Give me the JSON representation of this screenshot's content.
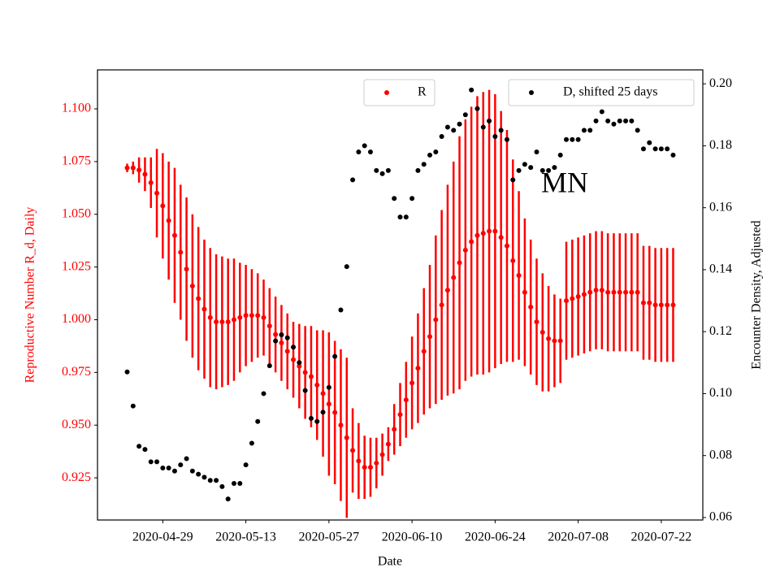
{
  "chart_data": {
    "type": "scatter",
    "xlabel": "Date",
    "ylabel": "Reproductive Number R_d, Daily",
    "y2label": "Encounter Density, Adjusted",
    "annotation": "MN",
    "x": [
      "2020-04-23",
      "2020-04-24",
      "2020-04-25",
      "2020-04-26",
      "2020-04-27",
      "2020-04-28",
      "2020-04-29",
      "2020-04-30",
      "2020-05-01",
      "2020-05-02",
      "2020-05-03",
      "2020-05-04",
      "2020-05-05",
      "2020-05-06",
      "2020-05-07",
      "2020-05-08",
      "2020-05-09",
      "2020-05-10",
      "2020-05-11",
      "2020-05-12",
      "2020-05-13",
      "2020-05-14",
      "2020-05-15",
      "2020-05-16",
      "2020-05-17",
      "2020-05-18",
      "2020-05-19",
      "2020-05-20",
      "2020-05-21",
      "2020-05-22",
      "2020-05-23",
      "2020-05-24",
      "2020-05-25",
      "2020-05-26",
      "2020-05-27",
      "2020-05-28",
      "2020-05-29",
      "2020-05-30",
      "2020-05-31",
      "2020-06-01",
      "2020-06-02",
      "2020-06-03",
      "2020-06-04",
      "2020-06-05",
      "2020-06-06",
      "2020-06-07",
      "2020-06-08",
      "2020-06-09",
      "2020-06-10",
      "2020-06-11",
      "2020-06-12",
      "2020-06-13",
      "2020-06-14",
      "2020-06-15",
      "2020-06-16",
      "2020-06-17",
      "2020-06-18",
      "2020-06-19",
      "2020-06-20",
      "2020-06-21",
      "2020-06-22",
      "2020-06-23",
      "2020-06-24",
      "2020-06-25",
      "2020-06-26",
      "2020-06-27",
      "2020-06-28",
      "2020-06-29",
      "2020-06-30",
      "2020-07-01",
      "2020-07-02",
      "2020-07-03",
      "2020-07-04",
      "2020-07-05",
      "2020-07-06",
      "2020-07-07",
      "2020-07-08",
      "2020-07-09",
      "2020-07-10",
      "2020-07-11",
      "2020-07-12",
      "2020-07-13",
      "2020-07-14",
      "2020-07-15",
      "2020-07-16",
      "2020-07-17",
      "2020-07-18",
      "2020-07-19",
      "2020-07-20",
      "2020-07-21",
      "2020-07-22",
      "2020-07-23",
      "2020-07-24"
    ],
    "series": [
      {
        "name": "R",
        "color": "#ff0000",
        "values": [
          1.072,
          1.072,
          1.071,
          1.069,
          1.065,
          1.06,
          1.054,
          1.047,
          1.04,
          1.032,
          1.024,
          1.016,
          1.01,
          1.005,
          1.001,
          0.999,
          0.999,
          0.999,
          1.0,
          1.001,
          1.002,
          1.002,
          1.002,
          1.001,
          0.997,
          0.993,
          0.989,
          0.985,
          0.981,
          0.978,
          0.975,
          0.973,
          0.969,
          0.965,
          0.96,
          0.956,
          0.95,
          0.944,
          0.938,
          0.933,
          0.93,
          0.93,
          0.932,
          0.936,
          0.941,
          0.948,
          0.955,
          0.962,
          0.97,
          0.977,
          0.985,
          0.992,
          1.0,
          1.007,
          1.014,
          1.02,
          1.027,
          1.033,
          1.037,
          1.04,
          1.041,
          1.042,
          1.042,
          1.039,
          1.035,
          1.028,
          1.021,
          1.013,
          1.006,
          0.999,
          0.994,
          0.991,
          0.99,
          0.99,
          1.009,
          1.01,
          1.011,
          1.012,
          1.013,
          1.014,
          1.014,
          1.013,
          1.013,
          1.013,
          1.013,
          1.013,
          1.013,
          1.008,
          1.008,
          1.007,
          1.007,
          1.007,
          1.007
        ],
        "errors": [
          0.002,
          0.003,
          0.006,
          0.008,
          0.012,
          0.021,
          0.025,
          0.028,
          0.032,
          0.032,
          0.034,
          0.034,
          0.034,
          0.033,
          0.033,
          0.032,
          0.031,
          0.03,
          0.029,
          0.026,
          0.024,
          0.022,
          0.02,
          0.018,
          0.018,
          0.018,
          0.018,
          0.018,
          0.018,
          0.02,
          0.022,
          0.024,
          0.026,
          0.03,
          0.034,
          0.034,
          0.036,
          0.038,
          0.02,
          0.018,
          0.015,
          0.014,
          0.012,
          0.01,
          0.008,
          0.012,
          0.015,
          0.018,
          0.022,
          0.026,
          0.03,
          0.034,
          0.04,
          0.045,
          0.05,
          0.055,
          0.06,
          0.062,
          0.064,
          0.066,
          0.067,
          0.067,
          0.065,
          0.06,
          0.055,
          0.048,
          0.04,
          0.035,
          0.032,
          0.03,
          0.028,
          0.025,
          0.022,
          0.02,
          0.028,
          0.028,
          0.028,
          0.028,
          0.028,
          0.028,
          0.028,
          0.028,
          0.028,
          0.028,
          0.028,
          0.028,
          0.028,
          0.027,
          0.027,
          0.027,
          0.027,
          0.027,
          0.027
        ]
      },
      {
        "name": "D, shifted 25 days",
        "color": "#000000",
        "axis": "y2",
        "values": [
          0.107,
          0.096,
          0.083,
          0.082,
          0.078,
          0.078,
          0.076,
          0.076,
          0.075,
          0.077,
          0.079,
          0.075,
          0.074,
          0.073,
          0.072,
          0.072,
          0.07,
          0.066,
          0.071,
          0.071,
          0.077,
          0.084,
          0.091,
          0.1,
          0.109,
          0.117,
          0.119,
          0.118,
          0.115,
          0.11,
          0.101,
          0.092,
          0.091,
          0.094,
          0.102,
          0.112,
          0.127,
          0.141,
          0.169,
          0.178,
          0.18,
          0.178,
          0.172,
          0.171,
          0.172,
          0.163,
          0.157,
          0.157,
          0.163,
          0.172,
          0.174,
          0.177,
          0.178,
          0.183,
          0.186,
          0.185,
          0.187,
          0.19,
          0.198,
          0.192,
          0.186,
          0.188,
          0.183,
          0.185,
          0.182,
          0.169,
          0.172,
          0.174,
          0.173,
          0.178,
          0.172,
          0.172,
          0.173,
          0.177,
          0.182,
          0.182,
          0.182,
          0.185,
          0.185,
          0.188,
          0.191,
          0.188,
          0.187,
          0.188,
          0.188,
          0.188,
          0.185,
          0.179,
          0.181,
          0.179,
          0.179,
          0.179,
          0.177
        ]
      }
    ],
    "xlim": [
      "2020-04-18",
      "2020-07-29"
    ],
    "xticks": [
      "2020-04-29",
      "2020-05-13",
      "2020-05-27",
      "2020-06-10",
      "2020-06-24",
      "2020-07-08",
      "2020-07-22"
    ],
    "ylim": [
      0.905,
      1.1185
    ],
    "yticks": [
      0.925,
      {
        "value": 0.95,
        "label": "0.950"
      },
      0.975,
      {
        "value": 1,
        "label": "1.000"
      },
      1.025,
      {
        "value": 1.05,
        "label": "1.050"
      },
      1.075,
      {
        "value": 1.1,
        "label": "1.100"
      }
    ],
    "y2lim": [
      0.0592,
      0.2045
    ],
    "y2ticks": [
      0.06,
      0.08,
      {
        "value": 0.1,
        "label": "0.10"
      },
      0.12,
      0.14,
      0.16,
      0.18,
      {
        "value": 0.2,
        "label": "0.20"
      }
    ]
  }
}
